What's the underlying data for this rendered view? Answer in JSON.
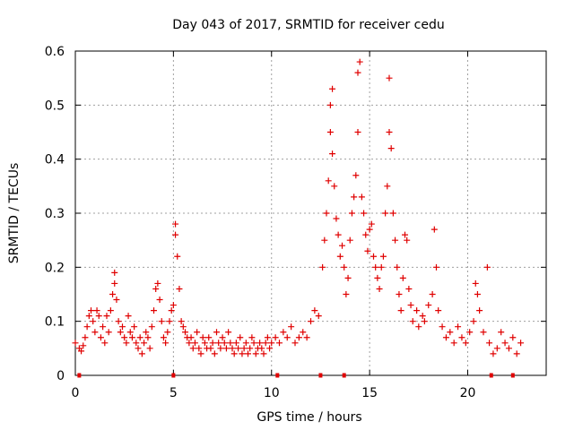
{
  "chart_data": {
    "type": "scatter",
    "title": "Day 043 of 2017, SRMTID for receiver cedu",
    "xlabel": "GPS time / hours",
    "ylabel": "SRMTID / TECUs",
    "xlim": [
      0,
      24
    ],
    "ylim": [
      0,
      0.6
    ],
    "x_ticks": [
      0,
      5,
      10,
      15,
      20
    ],
    "x_tick_labels": [
      "0",
      "5",
      "10",
      "15",
      "20"
    ],
    "y_ticks": [
      0,
      0.1,
      0.2,
      0.3,
      0.4,
      0.5,
      0.6
    ],
    "y_tick_labels": [
      "0",
      "0.1",
      "0.2",
      "0.3",
      "0.4",
      "0.5",
      "0.6"
    ],
    "grid": true,
    "marker": "plus",
    "color": "#e00000",
    "series": [
      {
        "name": "SRMTID",
        "points": [
          [
            0.0,
            0.06
          ],
          [
            0.2,
            0.05
          ],
          [
            0.3,
            0.045
          ],
          [
            0.4,
            0.055
          ],
          [
            0.5,
            0.07
          ],
          [
            0.6,
            0.09
          ],
          [
            0.7,
            0.11
          ],
          [
            0.8,
            0.12
          ],
          [
            0.9,
            0.1
          ],
          [
            1.0,
            0.08
          ],
          [
            1.1,
            0.12
          ],
          [
            1.2,
            0.11
          ],
          [
            1.3,
            0.07
          ],
          [
            1.4,
            0.09
          ],
          [
            1.5,
            0.06
          ],
          [
            1.6,
            0.11
          ],
          [
            1.7,
            0.08
          ],
          [
            1.8,
            0.12
          ],
          [
            1.9,
            0.15
          ],
          [
            2.0,
            0.19
          ],
          [
            2.0,
            0.17
          ],
          [
            2.1,
            0.14
          ],
          [
            2.2,
            0.1
          ],
          [
            2.3,
            0.08
          ],
          [
            2.4,
            0.09
          ],
          [
            2.5,
            0.07
          ],
          [
            2.6,
            0.06
          ],
          [
            2.7,
            0.11
          ],
          [
            2.8,
            0.08
          ],
          [
            2.9,
            0.07
          ],
          [
            3.0,
            0.09
          ],
          [
            3.1,
            0.06
          ],
          [
            3.2,
            0.05
          ],
          [
            3.3,
            0.07
          ],
          [
            3.4,
            0.04
          ],
          [
            3.5,
            0.06
          ],
          [
            3.6,
            0.08
          ],
          [
            3.7,
            0.07
          ],
          [
            3.8,
            0.05
          ],
          [
            3.9,
            0.09
          ],
          [
            4.0,
            0.12
          ],
          [
            4.1,
            0.16
          ],
          [
            4.2,
            0.17
          ],
          [
            4.3,
            0.14
          ],
          [
            4.4,
            0.1
          ],
          [
            4.5,
            0.07
          ],
          [
            4.6,
            0.06
          ],
          [
            4.7,
            0.08
          ],
          [
            4.8,
            0.1
          ],
          [
            4.9,
            0.12
          ],
          [
            5.0,
            0.13
          ],
          [
            5.1,
            0.26
          ],
          [
            5.1,
            0.28
          ],
          [
            5.2,
            0.22
          ],
          [
            5.3,
            0.16
          ],
          [
            5.4,
            0.1
          ],
          [
            5.5,
            0.09
          ],
          [
            5.6,
            0.08
          ],
          [
            5.7,
            0.07
          ],
          [
            5.8,
            0.06
          ],
          [
            5.9,
            0.07
          ],
          [
            6.0,
            0.05
          ],
          [
            6.1,
            0.06
          ],
          [
            6.2,
            0.08
          ],
          [
            6.3,
            0.05
          ],
          [
            6.4,
            0.04
          ],
          [
            6.5,
            0.07
          ],
          [
            6.6,
            0.06
          ],
          [
            6.7,
            0.05
          ],
          [
            6.8,
            0.07
          ],
          [
            6.9,
            0.05
          ],
          [
            7.0,
            0.06
          ],
          [
            7.1,
            0.04
          ],
          [
            7.2,
            0.08
          ],
          [
            7.3,
            0.06
          ],
          [
            7.4,
            0.05
          ],
          [
            7.5,
            0.07
          ],
          [
            7.6,
            0.06
          ],
          [
            7.7,
            0.05
          ],
          [
            7.8,
            0.08
          ],
          [
            7.9,
            0.06
          ],
          [
            8.0,
            0.05
          ],
          [
            8.1,
            0.04
          ],
          [
            8.2,
            0.06
          ],
          [
            8.3,
            0.05
          ],
          [
            8.4,
            0.07
          ],
          [
            8.5,
            0.04
          ],
          [
            8.6,
            0.05
          ],
          [
            8.7,
            0.06
          ],
          [
            8.8,
            0.04
          ],
          [
            8.9,
            0.05
          ],
          [
            9.0,
            0.07
          ],
          [
            9.1,
            0.06
          ],
          [
            9.2,
            0.04
          ],
          [
            9.3,
            0.05
          ],
          [
            9.4,
            0.06
          ],
          [
            9.5,
            0.05
          ],
          [
            9.6,
            0.04
          ],
          [
            9.7,
            0.06
          ],
          [
            9.8,
            0.07
          ],
          [
            9.9,
            0.05
          ],
          [
            10.0,
            0.06
          ],
          [
            10.2,
            0.07
          ],
          [
            10.4,
            0.06
          ],
          [
            10.6,
            0.08
          ],
          [
            10.8,
            0.07
          ],
          [
            11.0,
            0.09
          ],
          [
            11.2,
            0.06
          ],
          [
            11.4,
            0.07
          ],
          [
            11.6,
            0.08
          ],
          [
            11.8,
            0.07
          ],
          [
            12.0,
            0.1
          ],
          [
            12.2,
            0.12
          ],
          [
            12.4,
            0.11
          ],
          [
            12.6,
            0.2
          ],
          [
            12.7,
            0.25
          ],
          [
            12.8,
            0.3
          ],
          [
            12.9,
            0.36
          ],
          [
            13.0,
            0.45
          ],
          [
            13.0,
            0.5
          ],
          [
            13.1,
            0.53
          ],
          [
            13.1,
            0.41
          ],
          [
            13.2,
            0.35
          ],
          [
            13.3,
            0.29
          ],
          [
            13.4,
            0.26
          ],
          [
            13.5,
            0.22
          ],
          [
            13.6,
            0.24
          ],
          [
            13.7,
            0.2
          ],
          [
            13.8,
            0.15
          ],
          [
            13.9,
            0.18
          ],
          [
            14.0,
            0.25
          ],
          [
            14.1,
            0.3
          ],
          [
            14.2,
            0.33
          ],
          [
            14.3,
            0.37
          ],
          [
            14.4,
            0.45
          ],
          [
            14.4,
            0.56
          ],
          [
            14.5,
            0.58
          ],
          [
            14.6,
            0.33
          ],
          [
            14.7,
            0.3
          ],
          [
            14.8,
            0.26
          ],
          [
            14.9,
            0.23
          ],
          [
            15.0,
            0.27
          ],
          [
            15.1,
            0.28
          ],
          [
            15.2,
            0.22
          ],
          [
            15.3,
            0.2
          ],
          [
            15.4,
            0.18
          ],
          [
            15.5,
            0.16
          ],
          [
            15.6,
            0.2
          ],
          [
            15.7,
            0.22
          ],
          [
            15.8,
            0.3
          ],
          [
            15.9,
            0.35
          ],
          [
            16.0,
            0.45
          ],
          [
            16.0,
            0.55
          ],
          [
            16.1,
            0.42
          ],
          [
            16.2,
            0.3
          ],
          [
            16.3,
            0.25
          ],
          [
            16.4,
            0.2
          ],
          [
            16.5,
            0.15
          ],
          [
            16.6,
            0.12
          ],
          [
            16.7,
            0.18
          ],
          [
            16.8,
            0.26
          ],
          [
            16.9,
            0.25
          ],
          [
            17.0,
            0.16
          ],
          [
            17.1,
            0.13
          ],
          [
            17.2,
            0.1
          ],
          [
            17.4,
            0.12
          ],
          [
            17.5,
            0.09
          ],
          [
            17.7,
            0.11
          ],
          [
            17.8,
            0.1
          ],
          [
            18.0,
            0.13
          ],
          [
            18.2,
            0.15
          ],
          [
            18.3,
            0.27
          ],
          [
            18.4,
            0.2
          ],
          [
            18.5,
            0.12
          ],
          [
            18.7,
            0.09
          ],
          [
            18.9,
            0.07
          ],
          [
            19.1,
            0.08
          ],
          [
            19.3,
            0.06
          ],
          [
            19.5,
            0.09
          ],
          [
            19.7,
            0.07
          ],
          [
            19.9,
            0.06
          ],
          [
            20.1,
            0.08
          ],
          [
            20.3,
            0.1
          ],
          [
            20.4,
            0.17
          ],
          [
            20.5,
            0.15
          ],
          [
            20.6,
            0.12
          ],
          [
            20.8,
            0.08
          ],
          [
            21.0,
            0.2
          ],
          [
            21.1,
            0.06
          ],
          [
            21.3,
            0.04
          ],
          [
            21.5,
            0.05
          ],
          [
            21.7,
            0.08
          ],
          [
            21.9,
            0.06
          ],
          [
            22.1,
            0.05
          ],
          [
            22.3,
            0.07
          ],
          [
            22.5,
            0.04
          ],
          [
            22.7,
            0.06
          ]
        ]
      }
    ],
    "baseline_markers_x": [
      0.2,
      5.0,
      10.3,
      12.5,
      13.7,
      21.2,
      22.3
    ]
  }
}
